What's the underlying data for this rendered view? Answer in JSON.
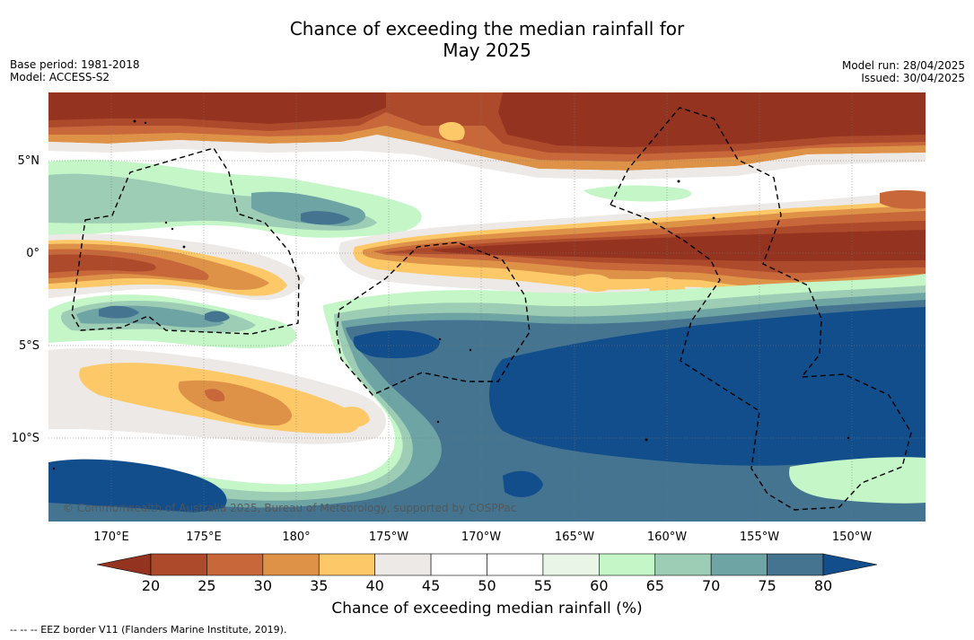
{
  "title": {
    "line1": "Chance of exceeding the median rainfall for",
    "line2": "May 2025"
  },
  "meta": {
    "base_period": "Base period: 1981-2018",
    "model": "Model: ACCESS-S2",
    "model_run": "Model run: 28/04/2025",
    "issued": "Issued: 30/04/2025"
  },
  "map": {
    "lat_labels": [
      "5°N",
      "0°",
      "5°S",
      "10°S"
    ],
    "lat_values": [
      5,
      0,
      -5,
      -10
    ],
    "lon_labels": [
      "170°E",
      "175°E",
      "180°",
      "175°W",
      "170°W",
      "165°W",
      "160°W",
      "155°W",
      "150°W"
    ],
    "lon_values": [
      170,
      175,
      180,
      185,
      190,
      195,
      200,
      205,
      210
    ],
    "lat_range": [
      -14.5,
      8.6
    ],
    "lon_range": [
      166.5,
      213.8
    ],
    "copyright": "© Commonwealth of Australia 2025, Bureau of Meteorology, supported by COSPPac",
    "colors": {
      "lt20": "#943320",
      "20-25": "#ad4a2c",
      "25-30": "#c8683a",
      "30-35": "#de9248",
      "35-40": "#fdc968",
      "40-45": "#ece9e6",
      "45-50": "#ffffff",
      "50-55": "#ffffff",
      "55-60": "#e9f5e6",
      "60-65": "#c4f6c8",
      "65-70": "#9dcdb4",
      "70-75": "#6fa4a4",
      "75-80": "#44748f",
      "gt80": "#134e8c"
    }
  },
  "colorbar": {
    "ticks": [
      "20",
      "25",
      "30",
      "35",
      "40",
      "45",
      "50",
      "55",
      "60",
      "65",
      "70",
      "75",
      "80"
    ],
    "colors": [
      "#ad4a2c",
      "#c8683a",
      "#de9248",
      "#fdc968",
      "#ece9e6",
      "#ffffff",
      "#ffffff",
      "#e9f5e6",
      "#c4f6c8",
      "#9dcdb4",
      "#6fa4a4",
      "#44748f"
    ],
    "under_color": "#943320",
    "over_color": "#134e8c",
    "label": "Chance of exceeding median rainfall (%)"
  },
  "footer": {
    "legend_line": "--  --  -- EEZ border V11 (Flanders Marine Institute, 2019)."
  }
}
